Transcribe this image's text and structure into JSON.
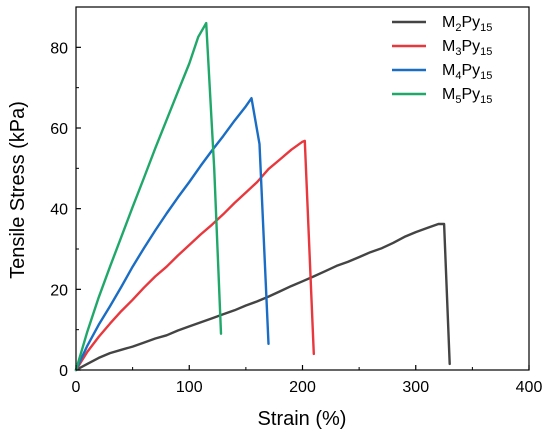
{
  "chart_data": {
    "type": "line",
    "title": "",
    "xlabel": "Strain (%)",
    "ylabel": "Tensile Stress (kPa)",
    "xlim": [
      0,
      400
    ],
    "ylim": [
      0,
      90
    ],
    "xticks": [
      0,
      100,
      200,
      300,
      400
    ],
    "yticks": [
      0,
      20,
      40,
      60,
      80
    ],
    "grid": false,
    "legend_position": "top-right",
    "series": [
      {
        "name": "M2Py15",
        "label_parts": {
          "base1": "M",
          "sub1": "2",
          "base2": "Py",
          "sub2": "15"
        },
        "color": "#444444",
        "x": [
          0,
          10,
          20,
          30,
          40,
          50,
          60,
          70,
          80,
          90,
          100,
          110,
          120,
          130,
          140,
          150,
          160,
          170,
          180,
          190,
          200,
          210,
          220,
          230,
          240,
          250,
          260,
          270,
          280,
          290,
          300,
          310,
          320,
          325,
          330
        ],
        "y": [
          0,
          1.5,
          3,
          4.2,
          5,
          5.8,
          6.8,
          7.8,
          8.6,
          9.8,
          10.8,
          11.8,
          12.8,
          13.8,
          14.8,
          16,
          17,
          18.2,
          19.5,
          20.8,
          22,
          23.2,
          24.5,
          25.8,
          26.8,
          28,
          29.2,
          30.2,
          31.5,
          33,
          34.2,
          35.2,
          36.2,
          36.2,
          1.5
        ]
      },
      {
        "name": "M3Py15",
        "label_parts": {
          "base1": "M",
          "sub1": "3",
          "base2": "Py",
          "sub2": "15"
        },
        "color": "#e8383d",
        "x": [
          0,
          10,
          20,
          30,
          40,
          50,
          60,
          70,
          80,
          90,
          100,
          110,
          120,
          130,
          140,
          150,
          160,
          170,
          180,
          190,
          200,
          202,
          210
        ],
        "y": [
          0,
          4.5,
          8.2,
          11.5,
          14.6,
          17.4,
          20.4,
          23.2,
          25.6,
          28.4,
          31,
          33.6,
          36,
          38.6,
          41.4,
          44,
          46.6,
          49.8,
          52.2,
          54.6,
          56.6,
          56.8,
          4
        ]
      },
      {
        "name": "M4Py15",
        "label_parts": {
          "base1": "M",
          "sub1": "4",
          "base2": "Py",
          "sub2": "15"
        },
        "color": "#1a6dc4",
        "x": [
          0,
          10,
          20,
          30,
          40,
          50,
          60,
          70,
          80,
          90,
          100,
          110,
          120,
          130,
          140,
          150,
          155,
          162,
          170
        ],
        "y": [
          0,
          6,
          11.2,
          15.8,
          20.6,
          25.6,
          30.2,
          34.6,
          38.8,
          42.8,
          46.6,
          50.6,
          54.4,
          58,
          61.8,
          65.4,
          67.4,
          56,
          6.5
        ]
      },
      {
        "name": "M5Py15",
        "label_parts": {
          "base1": "M",
          "sub1": "5",
          "base2": "Py",
          "sub2": "15"
        },
        "color": "#20a86a",
        "x": [
          0,
          10,
          20,
          30,
          40,
          50,
          60,
          70,
          80,
          90,
          100,
          108,
          115,
          122,
          128
        ],
        "y": [
          0,
          9.5,
          18,
          25.6,
          33,
          40.4,
          47.6,
          55,
          62,
          69,
          76,
          82.6,
          86,
          50,
          9
        ]
      }
    ]
  }
}
